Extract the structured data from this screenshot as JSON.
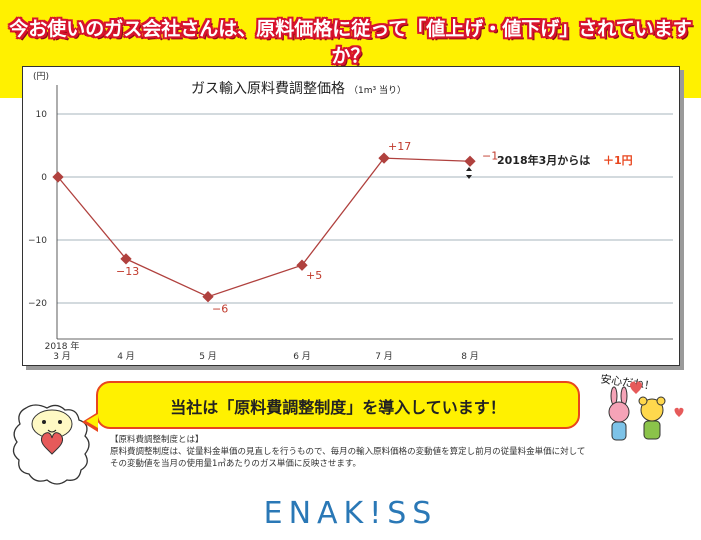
{
  "header": {
    "headline": "今お使いのガス会社さんは、原料価格に従って「値上げ・値下げ」されていますか？"
  },
  "chart_data": {
    "type": "line",
    "title": "ガス輸入原料費調整価格",
    "subtitle": "（1m³ 当り）",
    "ylabel": "(円)",
    "categories": [
      "2018 年\n3 月",
      "4 月",
      "5 月",
      "6 月",
      "7 月",
      "8 月"
    ],
    "category_lines": [
      [
        "2018 年",
        "3 月"
      ],
      [
        "4 月"
      ],
      [
        "5 月"
      ],
      [
        "6 月"
      ],
      [
        "7 月"
      ],
      [
        "8 月"
      ]
    ],
    "values": [
      0,
      -13,
      -19,
      -14,
      3,
      2.5
    ],
    "data_labels": [
      "",
      "−13",
      "−6",
      "+5",
      "+17",
      "−1"
    ],
    "yticks": [
      10,
      0,
      -10,
      -20
    ],
    "ytick_labels": [
      "10",
      "0",
      "−10",
      "−20"
    ],
    "ylim": [
      -25,
      13
    ],
    "grid": true,
    "line_color": "#b0413e",
    "annotation": {
      "text": "2018年3月からは",
      "highlight": "＋1円"
    }
  },
  "callout": {
    "text": "当社は「原料費調整制度」を導入しています！"
  },
  "characters": {
    "speech": "安心だね！"
  },
  "info": {
    "heading": "【原料費調整制度とは】",
    "body": "原料費調整制度は、従量料金単価の見直しを行うもので、毎月の輸入原料価格の変動値を算定し前月の従量料金単価に対して",
    "body2": "その変動値を当月の使用量1㎥あたりのガス単価に反映させます。"
  },
  "brand": {
    "logo": "ENAK!SS",
    "color": "#2a78b6"
  },
  "colors": {
    "banner": "#fff100",
    "accent": "#e8461e",
    "headline_outline": "#d7132d"
  }
}
